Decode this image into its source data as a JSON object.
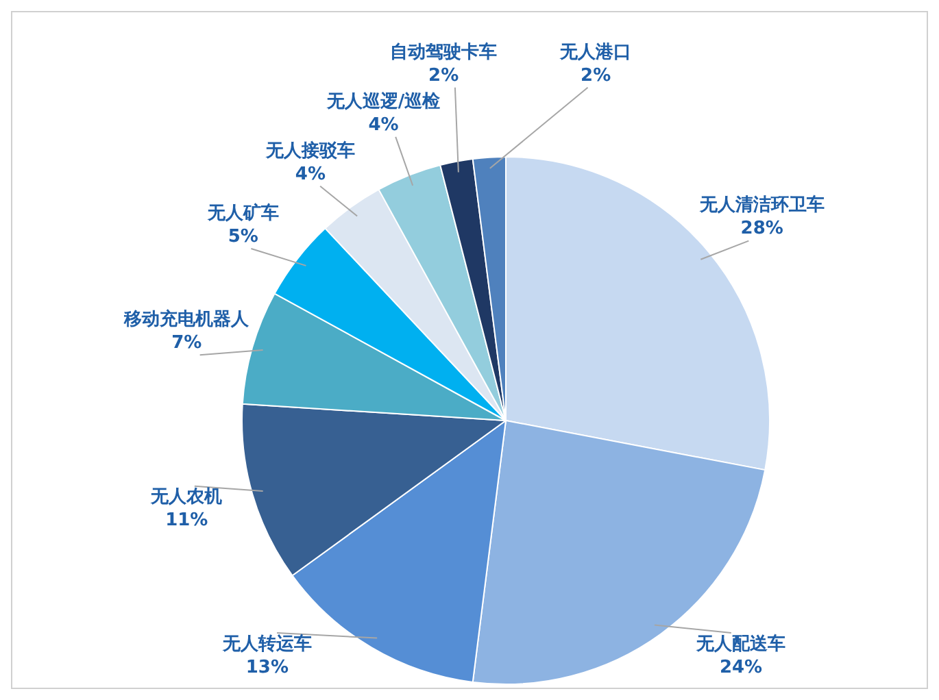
{
  "chart_data": {
    "type": "pie",
    "categories": [
      "无人清洁环卫车",
      "无人配送车",
      "无人转运车",
      "无人农机",
      "移动充电机器人",
      "无人矿车",
      "无人接驳车",
      "无人巡逻/巡检",
      "自动驾驶卡车",
      "无人港口"
    ],
    "values": [
      28,
      24,
      13,
      11,
      7,
      5,
      4,
      4,
      2,
      2
    ],
    "value_labels": [
      "28%",
      "24%",
      "13%",
      "11%",
      "7%",
      "5%",
      "4%",
      "4%",
      "2%",
      "2%"
    ],
    "colors": [
      "#c6d9f1",
      "#8db3e2",
      "#558ed5",
      "#376092",
      "#4bacc6",
      "#00b0f0",
      "#dce6f2",
      "#93cddd",
      "#1f3864",
      "#4f81bd"
    ],
    "legend": false
  }
}
